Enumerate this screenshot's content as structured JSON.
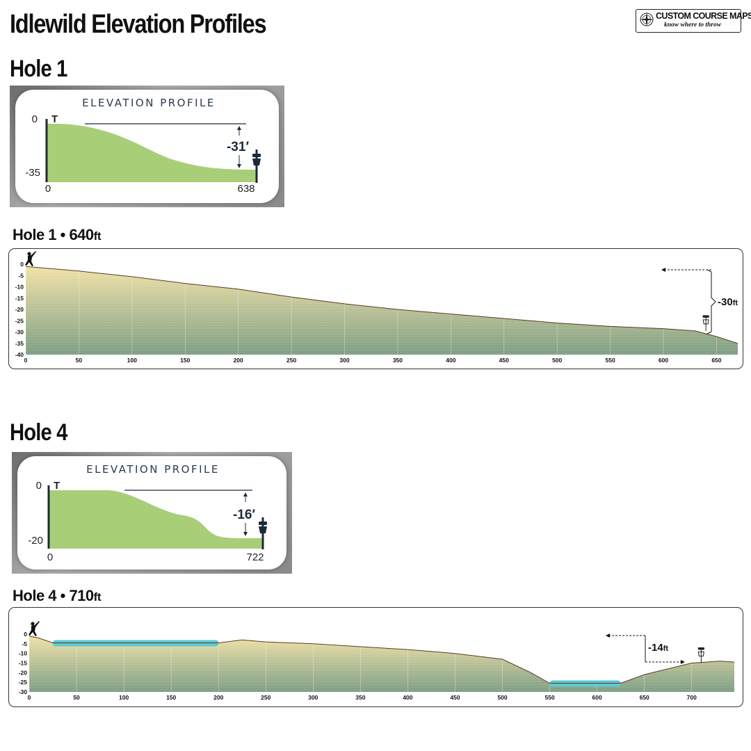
{
  "title": "Idlewild Elevation Profiles",
  "logo": {
    "brand": "CUSTOM COURSE MAPS",
    "tagline": "know where to throw",
    "icon": "compass-rose-icon"
  },
  "colors": {
    "profile_fill": "#a8cf78",
    "profile_stroke": "#1b2a3a",
    "terrain_top": "#f1e1a8",
    "terrain_bottom": "#7d9e83",
    "terrain_line": "#5b3b22",
    "water": "#5ec8d2"
  },
  "holes": [
    {
      "heading": "Hole 1",
      "subheading": "Hole 1 • 640",
      "subheading_unit": "ft",
      "profile": {
        "title": "ELEVATION PROFILE",
        "y_top_label": "0",
        "y_bottom_label": "-35",
        "x_start_label": "0",
        "x_end_label": "638",
        "tee_label": "T",
        "drop_label": "-31′"
      },
      "change_value": "-30",
      "change_unit": "ft"
    },
    {
      "heading": "Hole 4",
      "subheading": "Hole 4 • 710",
      "subheading_unit": "ft",
      "profile": {
        "title": "ELEVATION PROFILE",
        "y_top_label": "0",
        "y_bottom_label": "-20",
        "x_start_label": "0",
        "x_end_label": "722",
        "tee_label": "T",
        "drop_label": "-16′"
      },
      "change_value": "-14",
      "change_unit": "ft"
    }
  ],
  "chart_data": [
    {
      "type": "area",
      "title": "Hole 1 • 640ft",
      "xlabel": "",
      "ylabel": "",
      "x_unit": "ft",
      "y_unit": "ft",
      "xlim": [
        0,
        670
      ],
      "ylim": [
        -40,
        0
      ],
      "x_ticks": [
        0,
        50,
        100,
        150,
        200,
        250,
        300,
        350,
        400,
        450,
        500,
        550,
        600,
        650
      ],
      "y_ticks": [
        0,
        -5,
        -10,
        -15,
        -20,
        -25,
        -30,
        -35,
        -40
      ],
      "grid": true,
      "series": [
        {
          "x": [
            0,
            50,
            100,
            150,
            200,
            250,
            300,
            350,
            400,
            450,
            500,
            550,
            600,
            630,
            650,
            670
          ],
          "y": [
            -1,
            -3,
            -5.5,
            -8.5,
            -11,
            -14.5,
            -17.5,
            -20,
            -22,
            -24,
            -26,
            -27.5,
            -28.5,
            -29.5,
            -32,
            -35
          ]
        }
      ],
      "basket": {
        "x": 640,
        "y": -29.5
      },
      "elevation_change": {
        "value": -30,
        "unit": "ft"
      }
    },
    {
      "type": "area",
      "title": "Hole 4 • 710ft",
      "xlabel": "",
      "ylabel": "",
      "x_unit": "ft",
      "y_unit": "ft",
      "xlim": [
        0,
        745
      ],
      "ylim": [
        -30,
        0
      ],
      "x_ticks": [
        0,
        50,
        100,
        150,
        200,
        250,
        300,
        350,
        400,
        450,
        500,
        550,
        600,
        650,
        700
      ],
      "y_ticks": [
        0,
        -5,
        -10,
        -15,
        -20,
        -25,
        -30
      ],
      "grid": true,
      "series": [
        {
          "x": [
            0,
            10,
            25,
            100,
            200,
            225,
            250,
            300,
            350,
            400,
            450,
            500,
            530,
            550,
            625,
            650,
            700,
            730,
            745
          ],
          "y": [
            -1,
            -2,
            -4.5,
            -4.5,
            -4.5,
            -3,
            -4,
            -5,
            -6.5,
            -8,
            -10,
            -13,
            -20,
            -25.5,
            -25.5,
            -21,
            -15,
            -14,
            -14.5
          ]
        }
      ],
      "water": [
        {
          "x_start": 25,
          "x_end": 200,
          "y": -4.5
        },
        {
          "x_start": 550,
          "x_end": 625,
          "y": -25.5
        }
      ],
      "basket": {
        "x": 710,
        "y": -15
      },
      "elevation_change": {
        "value": -14,
        "unit": "ft"
      }
    }
  ]
}
